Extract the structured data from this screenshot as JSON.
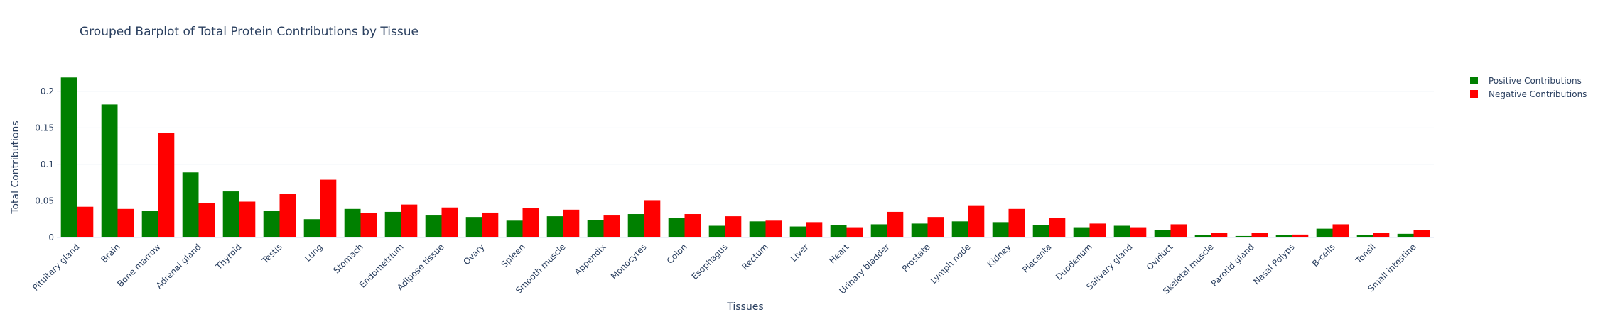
{
  "chart_data": {
    "type": "bar",
    "title": "Grouped Barplot of Total Protein Contributions by Tissue",
    "xlabel": "Tissues",
    "ylabel": "Total Contributions",
    "ylim": [
      0,
      0.228
    ],
    "yticks": [
      0,
      0.05,
      0.1,
      0.15,
      0.2
    ],
    "ytick_labels": [
      "0",
      "0.05",
      "0.1",
      "0.15",
      "0.2"
    ],
    "grid": true,
    "legend_position": "top-right",
    "categories": [
      "Pituitary gland",
      "Brain",
      "Bone marrow",
      "Adrenal gland",
      "Thyroid",
      "Testis",
      "Lung",
      "Stomach",
      "Endometrium",
      "Adipose tissue",
      "Ovary",
      "Spleen",
      "Smooth muscle",
      "Appendix",
      "Monocytes",
      "Colon",
      "Esophagus",
      "Rectum",
      "Liver",
      "Heart",
      "Urinary bladder",
      "Prostate",
      "Lymph node",
      "Kidney",
      "Placenta",
      "Duodenum",
      "Salivary gland",
      "Oviduct",
      "Skeletal muscle",
      "Parotid gland",
      "Nasal Polyps",
      "B-cells",
      "Tonsil",
      "Small intestine"
    ],
    "series": [
      {
        "name": "Positive Contributions",
        "color": "#008000",
        "values": [
          0.219,
          0.182,
          0.036,
          0.089,
          0.063,
          0.036,
          0.025,
          0.039,
          0.035,
          0.031,
          0.028,
          0.023,
          0.029,
          0.024,
          0.032,
          0.027,
          0.016,
          0.022,
          0.015,
          0.017,
          0.018,
          0.019,
          0.022,
          0.021,
          0.017,
          0.014,
          0.016,
          0.01,
          0.003,
          0.002,
          0.003,
          0.012,
          0.003,
          0.005
        ]
      },
      {
        "name": "Negative Contributions",
        "color": "#ff0000",
        "values": [
          0.042,
          0.039,
          0.143,
          0.047,
          0.049,
          0.06,
          0.079,
          0.033,
          0.045,
          0.041,
          0.034,
          0.04,
          0.038,
          0.031,
          0.051,
          0.032,
          0.029,
          0.023,
          0.021,
          0.014,
          0.035,
          0.028,
          0.044,
          0.039,
          0.027,
          0.019,
          0.014,
          0.018,
          0.006,
          0.006,
          0.004,
          0.018,
          0.006,
          0.01
        ]
      }
    ]
  }
}
